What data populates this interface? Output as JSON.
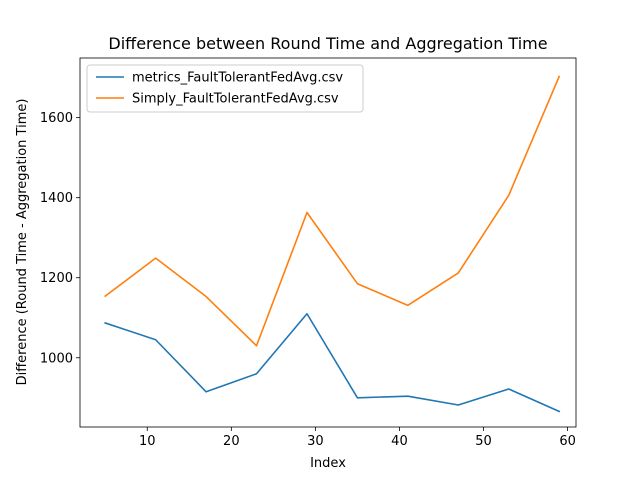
{
  "chart_data": {
    "type": "line",
    "title": "Difference between Round Time and Aggregation Time",
    "xlabel": "Index",
    "ylabel": "Difference (Round Time - Aggregation Time)",
    "xlim": [
      2,
      61
    ],
    "ylim": [
      827,
      1749
    ],
    "x_ticks": [
      10,
      20,
      30,
      40,
      50,
      60
    ],
    "y_ticks": [
      1000,
      1200,
      1400,
      1600
    ],
    "grid": false,
    "legend_position": "top-left",
    "x": [
      5,
      11,
      17,
      23,
      29,
      35,
      41,
      47,
      53,
      59
    ],
    "series": [
      {
        "name": "metrics_FaultTolerantFedAvg.csv",
        "color": "#1f77b4",
        "values": [
          1087,
          1045,
          915,
          960,
          1110,
          900,
          904,
          882,
          922,
          866
        ]
      },
      {
        "name": "Simply_FaultTolerantFedAvg.csv",
        "color": "#ff7f0e",
        "values": [
          1154,
          1249,
          1153,
          1030,
          1363,
          1185,
          1131,
          1212,
          1406,
          1703
        ]
      }
    ]
  }
}
